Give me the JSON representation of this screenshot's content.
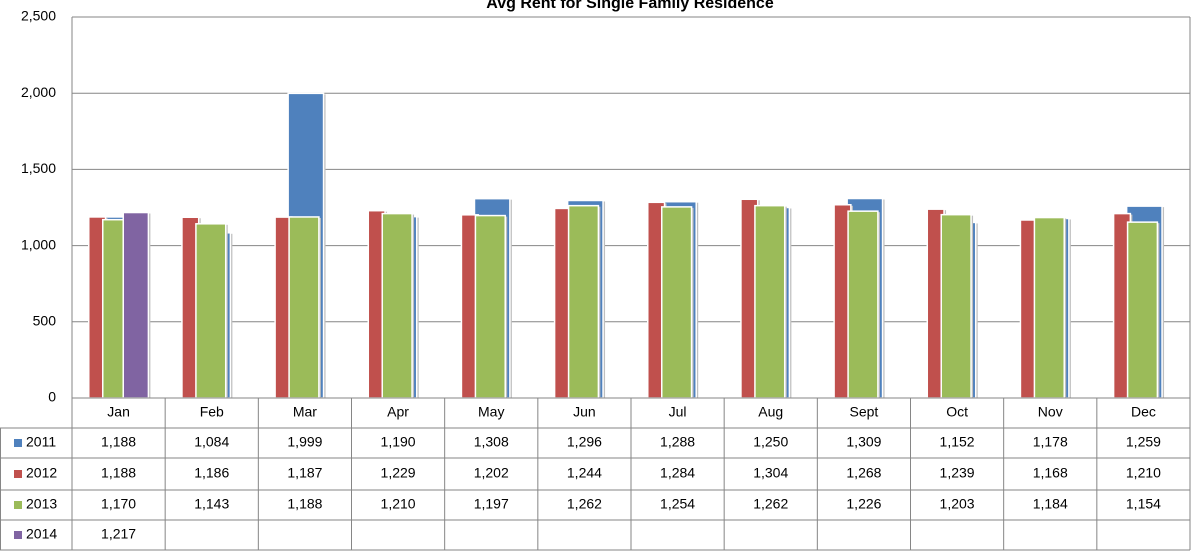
{
  "chart_data": {
    "type": "bar",
    "title": "Avg Rent for Single Family Residence",
    "categories": [
      "Jan",
      "Feb",
      "Mar",
      "Apr",
      "May",
      "Jun",
      "Jul",
      "Aug",
      "Sept",
      "Oct",
      "Nov",
      "Dec"
    ],
    "series": [
      {
        "name": "2011",
        "color": "#4f81bd",
        "values": [
          1188,
          1084,
          1999,
          1190,
          1308,
          1296,
          1288,
          1250,
          1309,
          1152,
          1178,
          1259
        ],
        "value_labels": [
          "1,188",
          "1,084",
          "1,999",
          "1,190",
          "1,308",
          "1,296",
          "1,288",
          "1,250",
          "1,309",
          "1,152",
          "1,178",
          "1,259"
        ]
      },
      {
        "name": "2012",
        "color": "#c0504d",
        "values": [
          1188,
          1186,
          1187,
          1229,
          1202,
          1244,
          1284,
          1304,
          1268,
          1239,
          1168,
          1210
        ],
        "value_labels": [
          "1,188",
          "1,186",
          "1,187",
          "1,229",
          "1,202",
          "1,244",
          "1,284",
          "1,304",
          "1,268",
          "1,239",
          "1,168",
          "1,210"
        ]
      },
      {
        "name": "2013",
        "color": "#9bbb59",
        "values": [
          1170,
          1143,
          1188,
          1210,
          1197,
          1262,
          1254,
          1262,
          1226,
          1203,
          1184,
          1154
        ],
        "value_labels": [
          "1,170",
          "1,143",
          "1,188",
          "1,210",
          "1,197",
          "1,262",
          "1,254",
          "1,262",
          "1,226",
          "1,203",
          "1,184",
          "1,154"
        ]
      },
      {
        "name": "2014",
        "color": "#8064a2",
        "values": [
          1217,
          null,
          null,
          null,
          null,
          null,
          null,
          null,
          null,
          null,
          null,
          null
        ],
        "value_labels": [
          "1,217",
          null,
          null,
          null,
          null,
          null,
          null,
          null,
          null,
          null,
          null,
          null
        ]
      }
    ],
    "ylim": [
      0,
      2500
    ],
    "yticks": [
      0,
      500,
      {
        "value": 1000,
        "label": "1,000"
      },
      {
        "value": 1500,
        "label": "1,500"
      },
      {
        "value": 2000,
        "label": "2,000"
      },
      {
        "value": 2500,
        "label": "2,500"
      }
    ],
    "grid": true
  }
}
